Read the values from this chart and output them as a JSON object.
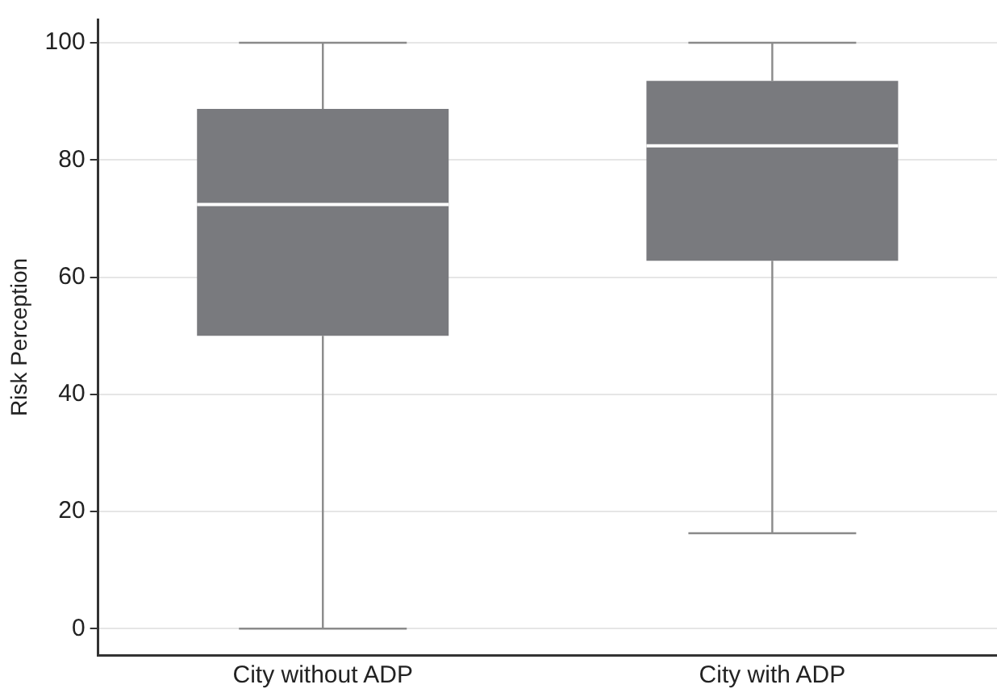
{
  "chart_data": {
    "type": "box",
    "ylabel": "Risk Perception",
    "categories": [
      "City without ADP",
      "City with ADP"
    ],
    "color": "#797a7e",
    "boxes": [
      {
        "low": 0,
        "q1": 50,
        "median": 72.4,
        "q3": 88.7,
        "high": 100
      },
      {
        "low": 16.3,
        "q1": 62.8,
        "median": 82.4,
        "q3": 93.5,
        "high": 100
      }
    ],
    "ylim": [
      -4.5,
      104
    ],
    "yticks": [
      0,
      20,
      40,
      60,
      80,
      100
    ],
    "grid": "y",
    "legend": false
  }
}
